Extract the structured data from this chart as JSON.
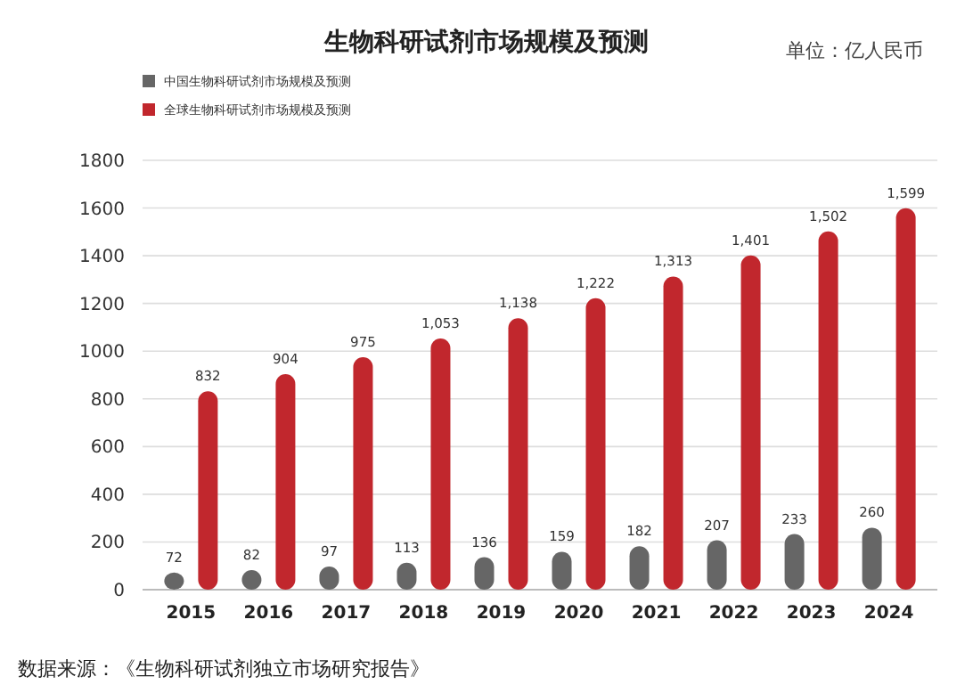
{
  "chart_data": {
    "type": "bar",
    "title": "生物科研试剂市场规模及预测",
    "subtitle": "单位：亿人民币",
    "categories": [
      "2015",
      "2016",
      "2017",
      "2018",
      "2019",
      "2020",
      "2021",
      "2022",
      "2023",
      "2024"
    ],
    "series": [
      {
        "name": "中国生物科研试剂市场规模及预测",
        "color": "#666666",
        "values": [
          72,
          82,
          97,
          113,
          136,
          159,
          182,
          207,
          233,
          260
        ],
        "value_labels": [
          "72",
          "82",
          "97",
          "113",
          "136",
          "159",
          "182",
          "207",
          "233",
          "260"
        ]
      },
      {
        "name": "全球生物科研试剂市场规模及预测",
        "color": "#c1272d",
        "values": [
          832,
          904,
          975,
          1053,
          1138,
          1222,
          1313,
          1401,
          1502,
          1599
        ],
        "value_labels": [
          "832",
          "904",
          "975",
          "1,053",
          "1,138",
          "1,222",
          "1,313",
          "1,401",
          "1,502",
          "1,599"
        ]
      }
    ],
    "ylim": [
      0,
      1800
    ],
    "yticks": [
      0,
      200,
      400,
      600,
      800,
      1000,
      1200,
      1400,
      1600,
      1800
    ],
    "grid": "y",
    "legend": "top left",
    "annotations": [
      "数据来源：《生物科研试剂独立市场研究报告》"
    ]
  }
}
